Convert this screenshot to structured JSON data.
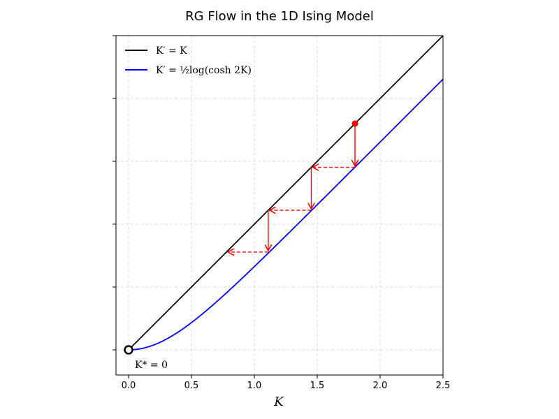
{
  "chart_data": {
    "type": "line",
    "title": "RG Flow in the 1D Ising Model",
    "xlabel": "K",
    "ylabel": "",
    "xlim": [
      -0.1,
      2.5
    ],
    "ylim": [
      -0.2,
      2.5
    ],
    "xticks": [
      0.0,
      0.5,
      1.0,
      1.5,
      2.0,
      2.5
    ],
    "xtick_labels": [
      "0.0",
      "0.5",
      "1.0",
      "1.5",
      "2.0",
      "2.5"
    ],
    "yticks": [
      0.0,
      0.5,
      1.0,
      1.5,
      2.0,
      2.5
    ],
    "ytick_labels": [
      "",
      "",
      "",
      "",
      "",
      ""
    ],
    "grid": true,
    "legend_position": "top-left",
    "series": [
      {
        "name": "K′ = K",
        "formula": "identity",
        "color": "#000000"
      },
      {
        "name": "K′ = ½log(cosh 2K)",
        "formula": "decimation",
        "color": "#0000ff"
      }
    ],
    "flow": {
      "color": "#ff0000",
      "start_point": {
        "x": 1.8,
        "y": 1.8
      },
      "iterates_K": [
        1.8,
        1.4525,
        1.1106,
        0.7784
      ],
      "vertical_segments": [
        {
          "x": 1.8,
          "from": 1.8,
          "to": 1.4525
        },
        {
          "x": 1.4525,
          "from": 1.4525,
          "to": 1.1106
        },
        {
          "x": 1.1106,
          "from": 1.1106,
          "to": 0.7784
        }
      ],
      "horizontal_segments": [
        {
          "y": 1.4525,
          "from": 1.8,
          "to": 1.4525
        },
        {
          "y": 1.1106,
          "from": 1.4525,
          "to": 1.1106
        },
        {
          "y": 0.7784,
          "from": 1.1106,
          "to": 0.7784
        }
      ]
    },
    "fixed_point": {
      "x": 0.0,
      "y": 0.0,
      "label": "K* = 0"
    }
  }
}
